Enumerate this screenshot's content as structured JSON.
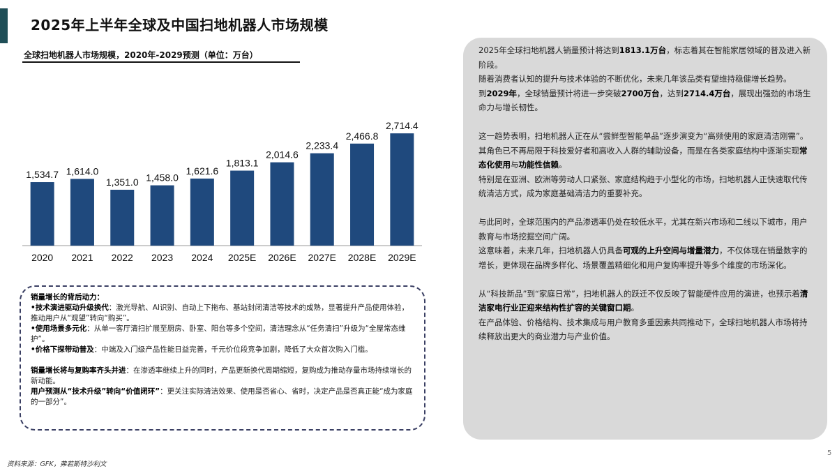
{
  "page": {
    "title": "2025年上半年全球及中国扫地机器人市场规模",
    "accent_color": "#1f4e57",
    "source": "资料来源：GFK，弗若斯特沙利文",
    "page_number": "5"
  },
  "chart_data": {
    "type": "bar",
    "title": "全球扫地机器人市场规模，2020年-2029预测（单位：万台）",
    "categories": [
      "2020",
      "2021",
      "2022",
      "2023",
      "2024",
      "2025E",
      "2026E",
      "2027E",
      "2028E",
      "2029E"
    ],
    "values": [
      1534.7,
      1614.0,
      1351.0,
      1458.0,
      1621.6,
      1813.1,
      2014.6,
      2233.4,
      2466.8,
      2714.4
    ],
    "value_labels": [
      "1,534.7",
      "1,614.0",
      "1,351.0",
      "1,458.0",
      "1,621.6",
      "1,813.1",
      "2,014.6",
      "2,233.4",
      "2,466.8",
      "2,714.4"
    ],
    "bar_color": "#1f497d",
    "xlabel": "",
    "ylabel": "",
    "ylim": [
      0,
      2750
    ],
    "grid": false,
    "legend": "none"
  },
  "drivers": {
    "heading": "销量增长的背后动力：",
    "items": [
      {
        "label": "•技术演进驱动升级换代",
        "text": "：激光导航、AI识别、自动上下拖布、基站封闭清洁等技术的成熟，显著提升产品使用体验，推动用户从“观望”转向“购买”。"
      },
      {
        "label": "•使用场景多元化",
        "text": "：从单一客厅清扫扩展至厨房、卧室、阳台等多个空间，清洁理念从“任务清扫”升级为“全屋常态维护”。"
      },
      {
        "label": "•价格下探带动普及",
        "text": "：中端及入门级产品性能日益完善，千元价位段竞争加剧，降低了大众首次购入门槛。"
      }
    ],
    "trend1": {
      "label": "销量增长将与复购率齐头并进",
      "text": "：在渗透率继续上升的同时，产品更新换代周期缩短，复购成为推动存量市场持续增长的新动能。"
    },
    "trend2": {
      "label": "用户预测从“技术升级”转向“价值闭环”",
      "text": "：更关注实际清洁效果、使用是否省心、省时，决定产品是否真正能“成为家庭的一部分”。"
    }
  },
  "panel": {
    "p1": [
      {
        "t": "2025年全球扫地机器人销量预计将达到"
      },
      {
        "t": "1813.1万台",
        "b": true
      },
      {
        "t": "，标志着其在智能家居领域的普及进入新阶段。"
      }
    ],
    "p2": [
      {
        "t": "随着消费者认知的提升与技术体验的不断优化，未来几年该品类有望维持稳健增长趋势。"
      }
    ],
    "p3": [
      {
        "t": "到"
      },
      {
        "t": "2029年",
        "b": true
      },
      {
        "t": "，全球销量预计将进一步突破"
      },
      {
        "t": "2700万台",
        "b": true
      },
      {
        "t": "，达到"
      },
      {
        "t": "2714.4万台",
        "b": true
      },
      {
        "t": "，展现出强劲的市场生命力与增长韧性。"
      }
    ],
    "p4": [
      {
        "t": "这一趋势表明，扫地机器人正在从“尝鲜型智能单品”逐步演变为“高频使用的家庭清洁刚需”。其角色已不再局限于科技爱好者和高收入人群的辅助设备，而是在各类家庭结构中逐渐实现"
      },
      {
        "t": "常态化使用",
        "b": true
      },
      {
        "t": "与"
      },
      {
        "t": "功能性信赖",
        "b": true
      },
      {
        "t": "。"
      }
    ],
    "p5": [
      {
        "t": "特别是在亚洲、欧洲等劳动人口紧张、家庭结构趋于小型化的市场，扫地机器人正快速取代传统清洁方式，成为家庭基础清洁力的重要补充。"
      }
    ],
    "p6": [
      {
        "t": "与此同时，全球范围内的产品渗透率仍处在较低水平，尤其在新兴市场和二线以下城市，用户教育与市场挖掘空间广阔。"
      }
    ],
    "p7": [
      {
        "t": "这意味着，未来几年，扫地机器人仍具备"
      },
      {
        "t": "可观的上升空间与增量潜力",
        "b": true
      },
      {
        "t": "，不仅体现在销量数字的增长，更体现在品牌多样化、场景覆盖精细化和用户复购率提升等多个维度的市场深化。"
      }
    ],
    "p8": [
      {
        "t": "从“科技新品”到“家庭日常”，扫地机器人的跃迁不仅反映了智能硬件应用的演进，也预示着"
      },
      {
        "t": "清洁家电行业正迎来结构性扩容的关键窗口期",
        "b": true
      },
      {
        "t": "。"
      }
    ],
    "p9": [
      {
        "t": "在产品体验、价格结构、技术集成与用户教育多重因素共同推动下，全球扫地机器人市场将持续释放出更大的商业潜力与产业价值。"
      }
    ]
  }
}
